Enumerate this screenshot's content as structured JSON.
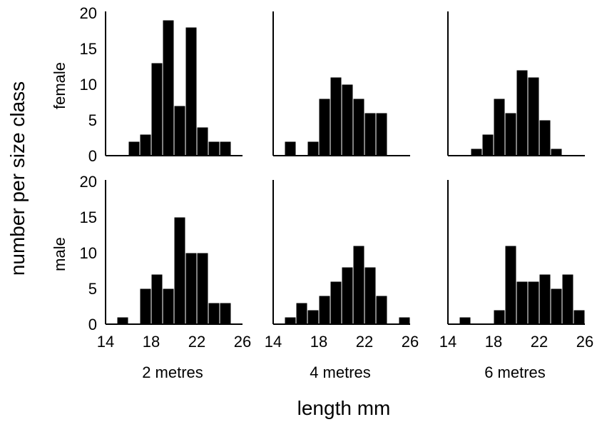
{
  "chart_data": {
    "type": "bar",
    "xlabel": "length mm",
    "ylabel": "number per size class",
    "ylim": [
      0,
      20
    ],
    "yticks": [
      "0",
      "5",
      "10",
      "15",
      "20"
    ],
    "xlim": [
      14,
      26
    ],
    "xticks": [
      "14",
      "18",
      "22",
      "26"
    ],
    "bin_width": 1,
    "rows": [
      "female",
      "male"
    ],
    "columns": [
      "2 metres",
      "4 metres",
      "6 metres"
    ],
    "panels": [
      {
        "sex": "female",
        "depth": "2 metres",
        "bins": [
          15.5,
          16.5,
          17.5,
          18.5,
          19.5,
          20.5,
          21.5,
          22.5,
          23.5,
          24.5
        ],
        "values": [
          0,
          2,
          3,
          13,
          19,
          7,
          18,
          4,
          2,
          2
        ]
      },
      {
        "sex": "female",
        "depth": "4 metres",
        "bins": [
          15.5,
          16.5,
          17.5,
          18.5,
          19.5,
          20.5,
          21.5,
          22.5,
          23.5,
          24.5,
          25.5
        ],
        "values": [
          2,
          0,
          2,
          8,
          11,
          10,
          8,
          6,
          6,
          0,
          0
        ]
      },
      {
        "sex": "female",
        "depth": "6 metres",
        "bins": [
          15.5,
          16.5,
          17.5,
          18.5,
          19.5,
          20.5,
          21.5,
          22.5,
          23.5
        ],
        "values": [
          0,
          1,
          3,
          8,
          6,
          12,
          11,
          5,
          1
        ]
      },
      {
        "sex": "male",
        "depth": "2 metres",
        "bins": [
          15.5,
          16.5,
          17.5,
          18.5,
          19.5,
          20.5,
          21.5,
          22.5,
          23.5,
          24.5
        ],
        "values": [
          1,
          0,
          5,
          7,
          5,
          15,
          10,
          10,
          3,
          3
        ]
      },
      {
        "sex": "male",
        "depth": "4 metres",
        "bins": [
          15.5,
          16.5,
          17.5,
          18.5,
          19.5,
          20.5,
          21.5,
          22.5,
          23.5,
          24.5,
          25.5
        ],
        "values": [
          1,
          3,
          2,
          4,
          6,
          8,
          11,
          8,
          4,
          0,
          1
        ]
      },
      {
        "sex": "male",
        "depth": "6 metres",
        "bins": [
          15.5,
          16.5,
          17.5,
          18.5,
          19.5,
          20.5,
          21.5,
          22.5,
          23.5,
          24.5,
          25.5
        ],
        "values": [
          1,
          0,
          0,
          2,
          11,
          6,
          6,
          7,
          5,
          7,
          2
        ]
      }
    ]
  }
}
